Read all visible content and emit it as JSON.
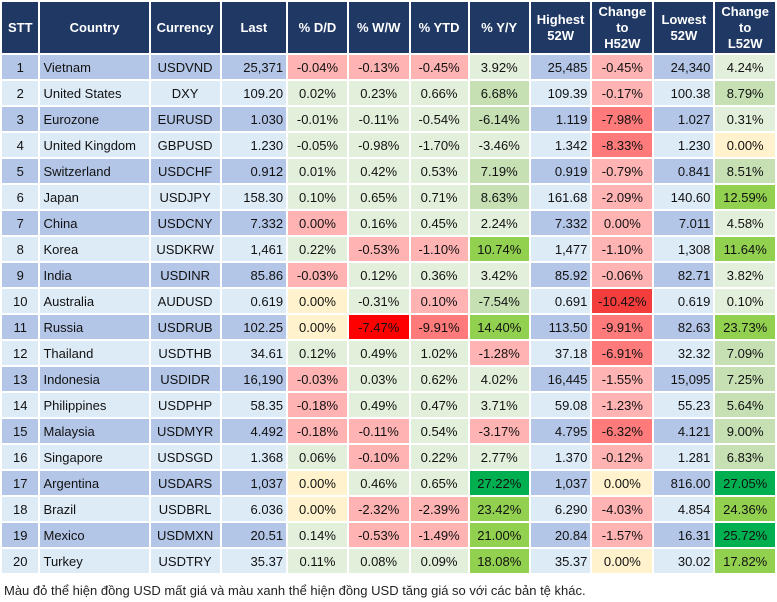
{
  "headers": [
    "STT",
    "Country",
    "Currency",
    "Last",
    "% D/D",
    "% W/W",
    "% YTD",
    "% Y/Y",
    "Highest\n52W",
    "Change\nto\nH52W",
    "Lowest\n52W",
    "Change\nto\nL52W"
  ],
  "colors": {
    "lr": "#ffb3b3",
    "r": "#ff7a7a",
    "rr": "#f33d3d",
    "R": "#ff0000",
    "lg": "#e2efda",
    "g": "#c6e0b4",
    "gg": "#92d050",
    "G": "#00b050",
    "y": "#fff2cc",
    "header": "#1f3864"
  },
  "rows": [
    {
      "stt": "1",
      "country": "Vietnam",
      "currency": "USDVND",
      "last": "25,371",
      "dd": "-0.04%",
      "ww": "-0.13%",
      "ytd": "-0.45%",
      "yy": "3.92%",
      "h52": "25,485",
      "ch": "-0.45%",
      "l52": "24,340",
      "cl": "4.24%",
      "k": [
        "lr",
        "lr",
        "lr",
        "lg",
        "lr",
        "lg"
      ]
    },
    {
      "stt": "2",
      "country": "United States",
      "currency": "DXY",
      "last": "109.20",
      "dd": "0.02%",
      "ww": "0.23%",
      "ytd": "0.66%",
      "yy": "6.68%",
      "h52": "109.39",
      "ch": "-0.17%",
      "l52": "100.38",
      "cl": "8.79%",
      "k": [
        "lg",
        "lg",
        "lg",
        "g",
        "lr",
        "g"
      ]
    },
    {
      "stt": "3",
      "country": "Eurozone",
      "currency": "EURUSD",
      "last": "1.030",
      "dd": "-0.01%",
      "ww": "-0.11%",
      "ytd": "-0.54%",
      "yy": "-6.14%",
      "h52": "1.119",
      "ch": "-7.98%",
      "l52": "1.027",
      "cl": "0.31%",
      "k": [
        "lg",
        "lg",
        "lg",
        "g",
        "r",
        "lg"
      ]
    },
    {
      "stt": "4",
      "country": "United Kingdom",
      "currency": "GBPUSD",
      "last": "1.230",
      "dd": "-0.05%",
      "ww": "-0.98%",
      "ytd": "-1.70%",
      "yy": "-3.46%",
      "h52": "1.342",
      "ch": "-8.33%",
      "l52": "1.230",
      "cl": "0.00%",
      "k": [
        "lg",
        "lg",
        "lg",
        "lg",
        "r",
        "y"
      ]
    },
    {
      "stt": "5",
      "country": "Switzerland",
      "currency": "USDCHF",
      "last": "0.912",
      "dd": "0.01%",
      "ww": "0.42%",
      "ytd": "0.53%",
      "yy": "7.19%",
      "h52": "0.919",
      "ch": "-0.79%",
      "l52": "0.841",
      "cl": "8.51%",
      "k": [
        "lg",
        "lg",
        "lg",
        "g",
        "lr",
        "g"
      ]
    },
    {
      "stt": "6",
      "country": "Japan",
      "currency": "USDJPY",
      "last": "158.30",
      "dd": "0.10%",
      "ww": "0.65%",
      "ytd": "0.71%",
      "yy": "8.63%",
      "h52": "161.68",
      "ch": "-2.09%",
      "l52": "140.60",
      "cl": "12.59%",
      "k": [
        "lg",
        "lg",
        "lg",
        "g",
        "lr",
        "gg"
      ]
    },
    {
      "stt": "7",
      "country": "China",
      "currency": "USDCNY",
      "last": "7.332",
      "dd": "0.00%",
      "ww": "0.16%",
      "ytd": "0.45%",
      "yy": "2.24%",
      "h52": "7.332",
      "ch": "0.00%",
      "l52": "7.011",
      "cl": "4.58%",
      "k": [
        "lr",
        "lg",
        "lg",
        "lg",
        "lr",
        "lg"
      ]
    },
    {
      "stt": "8",
      "country": "Korea",
      "currency": "USDKRW",
      "last": "1,461",
      "dd": "0.22%",
      "ww": "-0.53%",
      "ytd": "-1.10%",
      "yy": "10.74%",
      "h52": "1,477",
      "ch": "-1.10%",
      "l52": "1,308",
      "cl": "11.64%",
      "k": [
        "lg",
        "lr",
        "lr",
        "gg",
        "lr",
        "gg"
      ]
    },
    {
      "stt": "9",
      "country": "India",
      "currency": "USDINR",
      "last": "85.86",
      "dd": "-0.03%",
      "ww": "0.12%",
      "ytd": "0.36%",
      "yy": "3.42%",
      "h52": "85.92",
      "ch": "-0.06%",
      "l52": "82.71",
      "cl": "3.82%",
      "k": [
        "lr",
        "lg",
        "lg",
        "lg",
        "lr",
        "lg"
      ]
    },
    {
      "stt": "10",
      "country": "Australia",
      "currency": "AUDUSD",
      "last": "0.619",
      "dd": "0.00%",
      "ww": "-0.31%",
      "ytd": "0.10%",
      "yy": "-7.54%",
      "h52": "0.691",
      "ch": "-10.42%",
      "l52": "0.619",
      "cl": "0.10%",
      "k": [
        "y",
        "lg",
        "lr",
        "g",
        "rr",
        "lg"
      ]
    },
    {
      "stt": "11",
      "country": "Russia",
      "currency": "USDRUB",
      "last": "102.25",
      "dd": "0.00%",
      "ww": "-7.47%",
      "ytd": "-9.91%",
      "yy": "14.40%",
      "h52": "113.50",
      "ch": "-9.91%",
      "l52": "82.63",
      "cl": "23.73%",
      "k": [
        "y",
        "R",
        "r",
        "gg",
        "r",
        "gg"
      ]
    },
    {
      "stt": "12",
      "country": "Thailand",
      "currency": "USDTHB",
      "last": "34.61",
      "dd": "0.12%",
      "ww": "0.49%",
      "ytd": "1.02%",
      "yy": "-1.28%",
      "h52": "37.18",
      "ch": "-6.91%",
      "l52": "32.32",
      "cl": "7.09%",
      "k": [
        "lg",
        "lg",
        "lg",
        "lr",
        "r",
        "g"
      ]
    },
    {
      "stt": "13",
      "country": "Indonesia",
      "currency": "USDIDR",
      "last": "16,190",
      "dd": "-0.03%",
      "ww": "0.03%",
      "ytd": "0.62%",
      "yy": "4.02%",
      "h52": "16,445",
      "ch": "-1.55%",
      "l52": "15,095",
      "cl": "7.25%",
      "k": [
        "lr",
        "lg",
        "lg",
        "lg",
        "lr",
        "g"
      ]
    },
    {
      "stt": "14",
      "country": "Philippines",
      "currency": "USDPHP",
      "last": "58.35",
      "dd": "-0.18%",
      "ww": "0.49%",
      "ytd": "0.47%",
      "yy": "3.71%",
      "h52": "59.08",
      "ch": "-1.23%",
      "l52": "55.23",
      "cl": "5.64%",
      "k": [
        "lr",
        "lg",
        "lg",
        "lg",
        "lr",
        "g"
      ]
    },
    {
      "stt": "15",
      "country": "Malaysia",
      "currency": "USDMYR",
      "last": "4.492",
      "dd": "-0.18%",
      "ww": "-0.11%",
      "ytd": "0.54%",
      "yy": "-3.17%",
      "h52": "4.795",
      "ch": "-6.32%",
      "l52": "4.121",
      "cl": "9.00%",
      "k": [
        "lr",
        "lr",
        "lg",
        "lr",
        "r",
        "g"
      ]
    },
    {
      "stt": "16",
      "country": "Singapore",
      "currency": "USDSGD",
      "last": "1.368",
      "dd": "0.06%",
      "ww": "-0.10%",
      "ytd": "0.22%",
      "yy": "2.77%",
      "h52": "1.370",
      "ch": "-0.12%",
      "l52": "1.281",
      "cl": "6.83%",
      "k": [
        "lg",
        "lr",
        "lg",
        "lg",
        "lr",
        "g"
      ]
    },
    {
      "stt": "17",
      "country": "Argentina",
      "currency": "USDARS",
      "last": "1,037",
      "dd": "0.00%",
      "ww": "0.46%",
      "ytd": "0.65%",
      "yy": "27.22%",
      "h52": "1,037",
      "ch": "0.00%",
      "l52": "816.00",
      "cl": "27.05%",
      "k": [
        "y",
        "lg",
        "lg",
        "G",
        "y",
        "G"
      ]
    },
    {
      "stt": "18",
      "country": "Brazil",
      "currency": "USDBRL",
      "last": "6.036",
      "dd": "0.00%",
      "ww": "-2.32%",
      "ytd": "-2.39%",
      "yy": "23.42%",
      "h52": "6.290",
      "ch": "-4.03%",
      "l52": "4.854",
      "cl": "24.36%",
      "k": [
        "y",
        "lr",
        "lr",
        "gg",
        "lr",
        "gg"
      ]
    },
    {
      "stt": "19",
      "country": "Mexico",
      "currency": "USDMXN",
      "last": "20.51",
      "dd": "0.14%",
      "ww": "-0.53%",
      "ytd": "-1.49%",
      "yy": "21.00%",
      "h52": "20.84",
      "ch": "-1.57%",
      "l52": "16.31",
      "cl": "25.72%",
      "k": [
        "lg",
        "lr",
        "lr",
        "gg",
        "lr",
        "G"
      ]
    },
    {
      "stt": "20",
      "country": "Turkey",
      "currency": "USDTRY",
      "last": "35.37",
      "dd": "0.11%",
      "ww": "0.08%",
      "ytd": "0.09%",
      "yy": "18.08%",
      "h52": "35.37",
      "ch": "0.00%",
      "l52": "30.02",
      "cl": "17.82%",
      "k": [
        "lg",
        "lg",
        "lg",
        "gg",
        "y",
        "gg"
      ]
    }
  ],
  "footnote": "Màu đỏ thể hiện đồng USD mất giá và màu xanh thể hiện đồng USD tăng giá so với các bản tệ khác."
}
